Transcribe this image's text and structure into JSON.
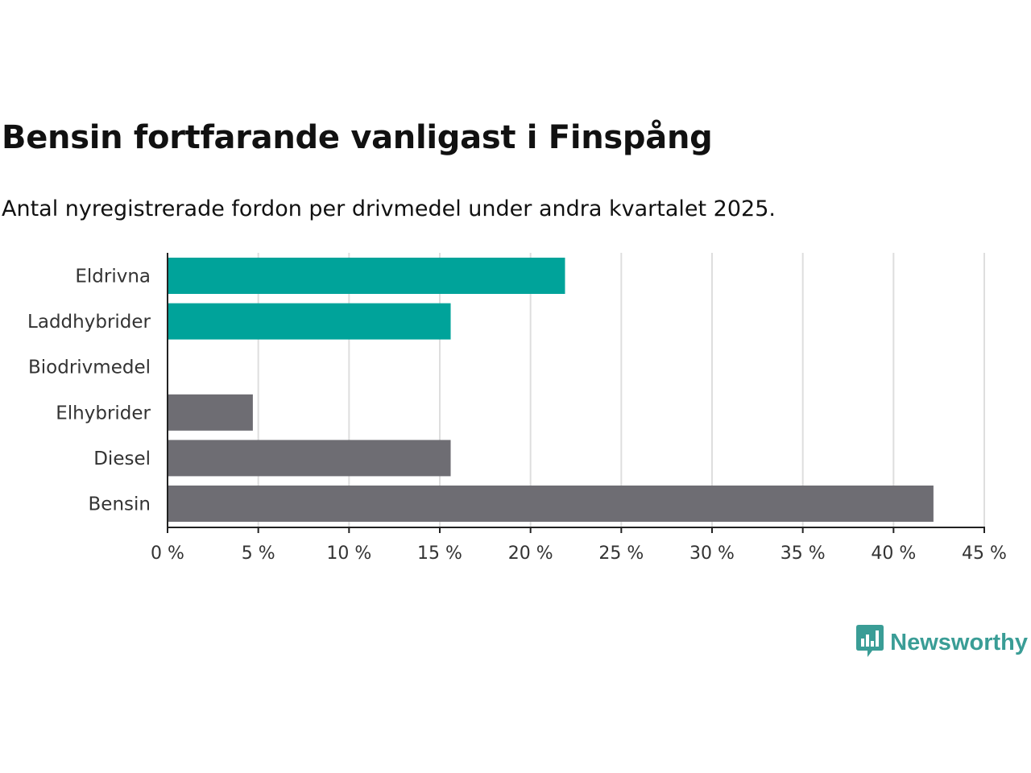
{
  "chart_data": {
    "type": "bar",
    "orientation": "horizontal",
    "title": "Bensin fortfarande vanligast i Finspång",
    "subtitle": "Antal nyregistrerade fordon per drivmedel under andra kvartalet 2025.",
    "categories": [
      "Eldrivna",
      "Laddhybrider",
      "Biodrivmedel",
      "Elhybrider",
      "Diesel",
      "Bensin"
    ],
    "values": [
      21.9,
      15.6,
      0,
      4.7,
      15.6,
      42.2
    ],
    "colors": [
      "#00a39a",
      "#00a39a",
      "#00a39a",
      "#6e6d73",
      "#6e6d73",
      "#6e6d73"
    ],
    "xlim": [
      0,
      45
    ],
    "xticks": [
      0,
      5,
      10,
      15,
      20,
      25,
      30,
      35,
      40,
      45
    ],
    "xtick_labels": [
      "0 %",
      "5 %",
      "10 %",
      "15 %",
      "20 %",
      "25 %",
      "30 %",
      "35 %",
      "40 %",
      "45 %"
    ],
    "grid": "vertical",
    "xlabel": "",
    "ylabel": ""
  },
  "brand": {
    "name": "Newsworthy",
    "color": "#3a9d96",
    "icon": "bar-chart-speech-bubble-icon"
  }
}
